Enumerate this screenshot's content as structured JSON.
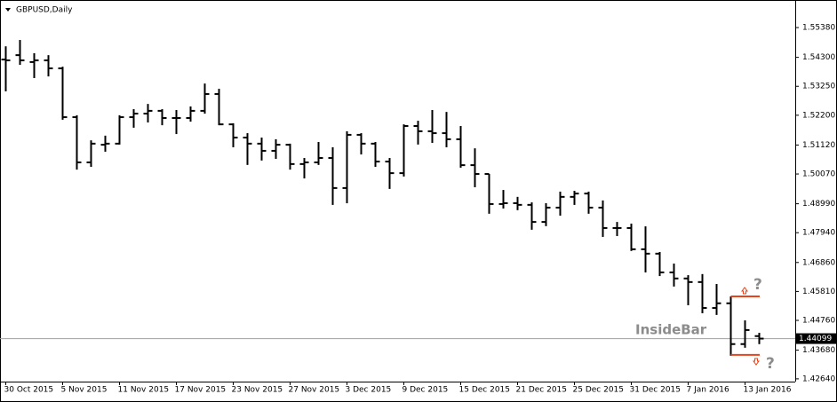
{
  "chart_data": {
    "type": "ohlc",
    "title": "GBPUSD,Daily",
    "annotation": "InsideBar",
    "question_mark": "?",
    "categories": [
      "30 Oct 2015",
      null,
      null,
      null,
      "5 Nov 2015",
      null,
      null,
      null,
      "11 Nov 2015",
      null,
      null,
      null,
      "17 Nov 2015",
      null,
      null,
      null,
      "23 Nov 2015",
      null,
      null,
      null,
      "27 Nov 2015",
      null,
      null,
      null,
      "3 Dec 2015",
      null,
      null,
      null,
      "9 Dec 2015",
      null,
      null,
      null,
      "15 Dec 2015",
      null,
      null,
      null,
      "21 Dec 2015",
      null,
      null,
      null,
      "25 Dec 2015",
      null,
      null,
      null,
      "31 Dec 2015",
      null,
      null,
      null,
      "7 Jan 2016",
      null,
      null,
      null,
      "13 Jan 2016",
      null
    ],
    "open": [
      1.5422,
      1.5438,
      1.5413,
      1.5419,
      1.539,
      1.5213,
      1.5049,
      1.5113,
      1.5117,
      1.5213,
      1.5226,
      1.5236,
      1.521,
      1.521,
      1.5236,
      1.5297,
      1.5187,
      1.5139,
      1.5117,
      1.5091,
      1.5113,
      1.5043,
      1.5049,
      1.5065,
      1.4956,
      1.5149,
      1.5117,
      1.5052,
      1.501,
      1.5181,
      1.5162,
      1.5155,
      1.5133,
      1.5039,
      1.5007,
      1.4898,
      1.4901,
      1.4895,
      1.4833,
      1.4885,
      1.4924,
      1.4936,
      1.4885,
      1.4811,
      1.4811,
      1.4734,
      1.4718,
      1.465,
      1.4628,
      1.4615,
      1.4521,
      1.4538,
      1.439,
      1.4419
    ],
    "high": [
      1.547,
      1.5493,
      1.5445,
      1.5438,
      1.5396,
      1.522,
      1.5129,
      1.5146,
      1.522,
      1.5242,
      1.5261,
      1.5242,
      1.5239,
      1.5252,
      1.5335,
      1.5316,
      1.5191,
      1.5155,
      1.5139,
      1.5133,
      1.5117,
      1.5065,
      1.5123,
      1.5104,
      1.5162,
      1.5155,
      1.5123,
      1.5065,
      1.5187,
      1.52,
      1.5239,
      1.5232,
      1.5181,
      1.51,
      1.5007,
      1.4949,
      1.4924,
      1.4904,
      1.4901,
      1.4943,
      1.4946,
      1.4943,
      1.4911,
      1.4833,
      1.4827,
      1.4817,
      1.4724,
      1.4682,
      1.464,
      1.4644,
      1.4608,
      1.4563,
      1.4476,
      1.4431
    ],
    "low": [
      1.531,
      1.5406,
      1.5358,
      1.5364,
      1.5207,
      1.5026,
      1.5036,
      1.5091,
      1.5117,
      1.5178,
      1.5197,
      1.5187,
      1.5155,
      1.52,
      1.5229,
      1.5187,
      1.5107,
      1.5043,
      1.5059,
      1.5065,
      1.5026,
      1.4994,
      1.5043,
      1.4898,
      1.4904,
      1.5081,
      1.5036,
      1.4956,
      1.5001,
      1.5117,
      1.5123,
      1.5107,
      1.5033,
      1.4962,
      1.4866,
      1.4885,
      1.4879,
      1.4808,
      1.4821,
      1.4859,
      1.4898,
      1.4866,
      1.4782,
      1.4785,
      1.4731,
      1.4653,
      1.464,
      1.4602,
      1.4534,
      1.4505,
      1.4499,
      1.4351,
      1.438,
      1.4393
    ],
    "close": [
      1.5419,
      1.5419,
      1.5419,
      1.539,
      1.5213,
      1.5049,
      1.5117,
      1.5117,
      1.5213,
      1.5226,
      1.5236,
      1.521,
      1.521,
      1.5236,
      1.5297,
      1.5187,
      1.5139,
      1.5117,
      1.5091,
      1.5113,
      1.5043,
      1.5049,
      1.5065,
      1.4956,
      1.5149,
      1.5117,
      1.5052,
      1.501,
      1.5181,
      1.5162,
      1.5155,
      1.5133,
      1.5039,
      1.5007,
      1.4898,
      1.4901,
      1.4895,
      1.4833,
      1.4885,
      1.4924,
      1.4936,
      1.4885,
      1.4811,
      1.4811,
      1.4734,
      1.4718,
      1.465,
      1.4628,
      1.4615,
      1.4521,
      1.4538,
      1.439,
      1.4441,
      1.44099
    ],
    "color": "#000000",
    "level_color": "#e8431a",
    "mother_bar": 51,
    "last_price": 1.44099,
    "ylim": [
      1.4254,
      1.5638
    ],
    "yticks": [
      {
        "value": 1.5538,
        "label": "1.55380"
      },
      {
        "value": 1.543,
        "label": "1.54300"
      },
      {
        "value": 1.5325,
        "label": "1.53250"
      },
      {
        "value": 1.522,
        "label": "1.52200"
      },
      {
        "value": 1.5112,
        "label": "1.51120"
      },
      {
        "value": 1.5007,
        "label": "1.50070"
      },
      {
        "value": 1.4899,
        "label": "1.48990"
      },
      {
        "value": 1.4794,
        "label": "1.47940"
      },
      {
        "value": 1.4686,
        "label": "1.46860"
      },
      {
        "value": 1.4581,
        "label": "1.45810"
      },
      {
        "value": 1.4476,
        "label": "1.44760"
      },
      {
        "value": 1.4368,
        "label": "1.43680"
      },
      {
        "value": 1.4264,
        "label": "1.42640"
      }
    ]
  }
}
